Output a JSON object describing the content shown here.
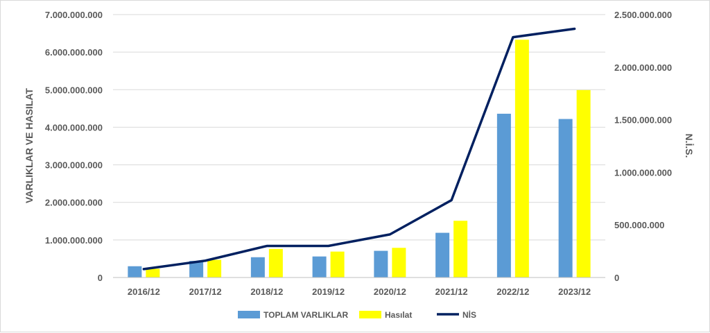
{
  "chart_data": {
    "type": "bar",
    "categories": [
      "2016/12",
      "2017/12",
      "2018/12",
      "2019/12",
      "2020/12",
      "2021/12",
      "2022/12",
      "2023/12"
    ],
    "series": [
      {
        "name": "TOPLAM VARLIKLAR",
        "type": "bar",
        "axis": "left",
        "color": "#5b9bd5",
        "values": [
          300000000,
          440000000,
          540000000,
          560000000,
          710000000,
          1190000000,
          4360000000,
          4220000000
        ]
      },
      {
        "name": "Hasılat",
        "type": "bar",
        "axis": "left",
        "color": "#ffff00",
        "values": [
          230000000,
          470000000,
          760000000,
          690000000,
          790000000,
          1510000000,
          6330000000,
          4990000000
        ]
      },
      {
        "name": "NİS",
        "type": "line",
        "axis": "right",
        "color": "#002060",
        "values": [
          80000000,
          160000000,
          300000000,
          300000000,
          410000000,
          735000000,
          2285000000,
          2365000000
        ]
      }
    ],
    "ylabel": "VARLIKLAR VE HASILAT",
    "y2label": "N.İ.S.",
    "ylim": [
      0,
      7000000000
    ],
    "y2lim": [
      0,
      2500000000
    ],
    "yticks": [
      "0",
      "1.000.000.000",
      "2.000.000.000",
      "3.000.000.000",
      "4.000.000.000",
      "5.000.000.000",
      "6.000.000.000",
      "7.000.000.000"
    ],
    "y2ticks": [
      "0",
      "500.000.000",
      "1.000.000.000",
      "1.500.000.000",
      "2.000.000.000",
      "2.500.000.000"
    ],
    "grid": true,
    "legend_position": "bottom"
  }
}
